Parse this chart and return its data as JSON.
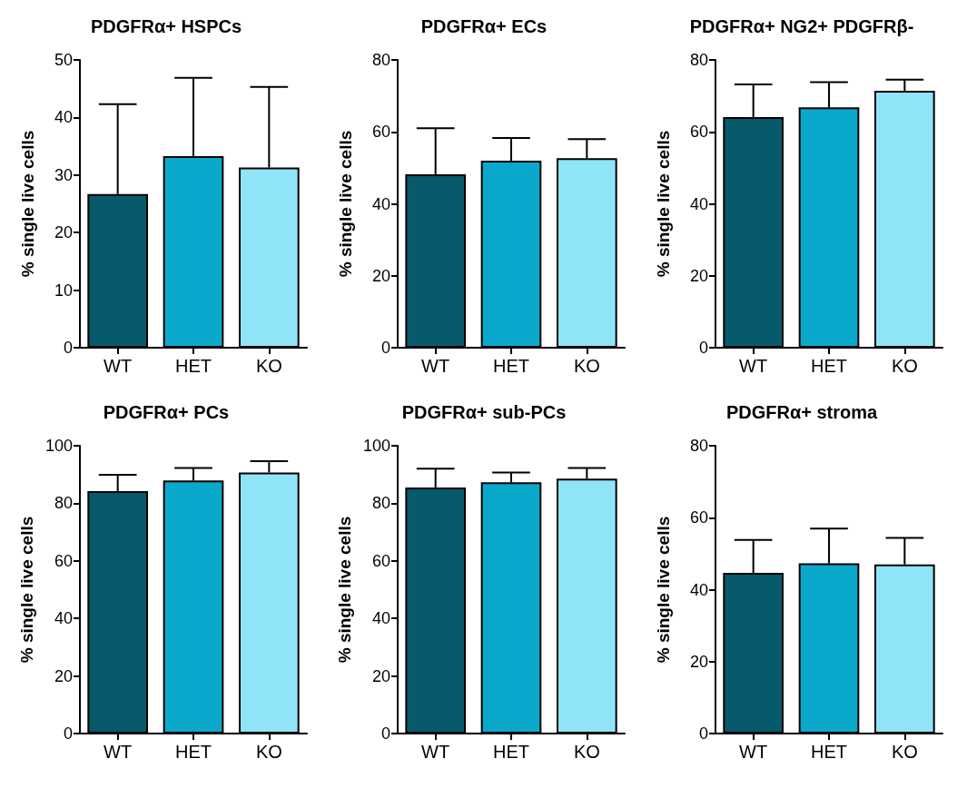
{
  "chart_data": [
    {
      "type": "bar",
      "title": "PDGFRα+ HSPCs",
      "ylabel": "% single live cells",
      "categories": [
        "WT",
        "HET",
        "KO"
      ],
      "values": [
        26.7,
        33.3,
        31.3
      ],
      "colors": [
        "#075a6b",
        "#0aa9cc",
        "#8fe5f7"
      ],
      "errors": [
        [
          26.7,
          42.3
        ],
        [
          33.3,
          46.9
        ],
        [
          31.3,
          45.3
        ]
      ],
      "ylim": [
        0,
        50
      ],
      "yticks": [
        0,
        10,
        20,
        30,
        40,
        50
      ],
      "grid": false
    },
    {
      "type": "bar",
      "title": "PDGFRα+ ECs",
      "ylabel": "% single live cells",
      "categories": [
        "WT",
        "HET",
        "KO"
      ],
      "values": [
        48.2,
        52.0,
        52.7
      ],
      "colors": [
        "#075a6b",
        "#0aa9cc",
        "#8fe5f7"
      ],
      "errors": [
        [
          48.2,
          61.0
        ],
        [
          52.0,
          58.3
        ],
        [
          52.7,
          58.0
        ]
      ],
      "ylim": [
        0,
        80
      ],
      "yticks": [
        0,
        20,
        40,
        60,
        80
      ],
      "grid": false
    },
    {
      "type": "bar",
      "title": "PDGFRα+ NG2+ PDGFRβ-",
      "ylabel": "% single live cells",
      "categories": [
        "WT",
        "HET",
        "KO"
      ],
      "values": [
        64.1,
        66.8,
        71.4
      ],
      "colors": [
        "#075a6b",
        "#0aa9cc",
        "#8fe5f7"
      ],
      "errors": [
        [
          64.1,
          73.2
        ],
        [
          66.8,
          73.8
        ],
        [
          71.4,
          74.5
        ]
      ],
      "ylim": [
        0,
        80
      ],
      "yticks": [
        0,
        20,
        40,
        60,
        80
      ],
      "grid": false
    },
    {
      "type": "bar",
      "title": "PDGFRα+ PCs",
      "ylabel": "% single live cells",
      "categories": [
        "WT",
        "HET",
        "KO"
      ],
      "values": [
        84.2,
        87.9,
        90.7
      ],
      "colors": [
        "#075a6b",
        "#0aa9cc",
        "#8fe5f7"
      ],
      "errors": [
        [
          84.2,
          89.9
        ],
        [
          87.9,
          92.3
        ],
        [
          90.7,
          94.6
        ]
      ],
      "ylim": [
        0,
        100
      ],
      "yticks": [
        0,
        20,
        40,
        60,
        80,
        100
      ],
      "grid": false
    },
    {
      "type": "bar",
      "title": "PDGFRα+ sub-PCs",
      "ylabel": "% single live cells",
      "categories": [
        "WT",
        "HET",
        "KO"
      ],
      "values": [
        85.5,
        87.3,
        88.6
      ],
      "colors": [
        "#075a6b",
        "#0aa9cc",
        "#8fe5f7"
      ],
      "errors": [
        [
          85.5,
          92.0
        ],
        [
          87.3,
          90.7
        ],
        [
          88.6,
          92.3
        ]
      ],
      "ylim": [
        0,
        100
      ],
      "yticks": [
        0,
        20,
        40,
        60,
        80,
        100
      ],
      "grid": false
    },
    {
      "type": "bar",
      "title": "PDGFRα+ stroma",
      "ylabel": "% single live cells",
      "categories": [
        "WT",
        "HET",
        "KO"
      ],
      "values": [
        44.7,
        47.3,
        47.0
      ],
      "colors": [
        "#075a6b",
        "#0aa9cc",
        "#8fe5f7"
      ],
      "errors": [
        [
          44.7,
          53.8
        ],
        [
          47.3,
          57.0
        ],
        [
          47.0,
          54.4
        ]
      ],
      "ylim": [
        0,
        80
      ],
      "yticks": [
        0,
        20,
        40,
        60,
        80
      ],
      "grid": false
    }
  ]
}
